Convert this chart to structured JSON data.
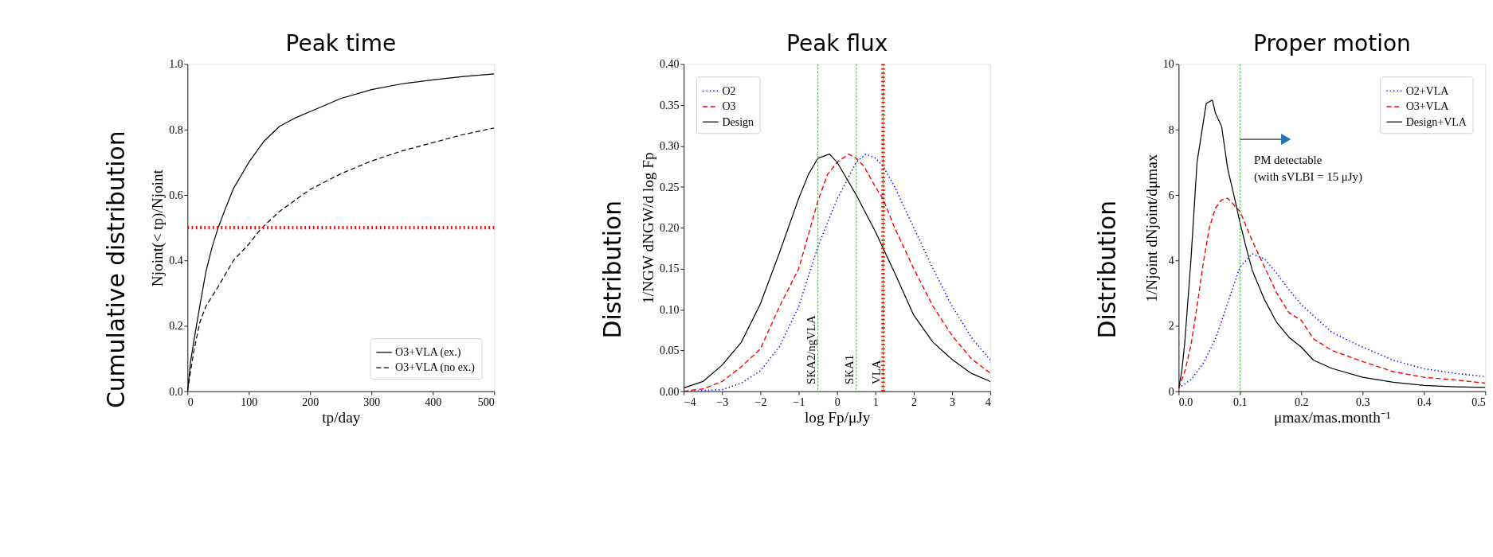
{
  "chart_data": [
    {
      "type": "line",
      "title": "Peak time",
      "xlabel": "tp/day",
      "ylabel": "Njoint(< tp)/Njoint",
      "annotations": [
        "Cumulative distribution"
      ],
      "xlim": [
        0,
        500
      ],
      "xticks": [
        0,
        100,
        200,
        300,
        400,
        500
      ],
      "ylim": [
        0,
        1
      ],
      "yticks": [
        {
          "value": 0,
          "label": "0.0"
        },
        0.2,
        0.4,
        0.6,
        0.8,
        {
          "value": 1,
          "label": "1.0"
        }
      ],
      "grid": false,
      "legend": "bottom right",
      "ref_lines": [
        {
          "axis": "y",
          "value": 0.5,
          "color": "#ff0000",
          "line_style": "dotted"
        }
      ],
      "series": [
        {
          "name": "O3+VLA (ex.)",
          "color": "#000000",
          "line_style": "solid",
          "x": [
            0,
            5,
            10,
            20,
            30,
            40,
            50,
            60,
            75,
            100,
            125,
            150,
            175,
            200,
            250,
            300,
            350,
            400,
            450,
            500
          ],
          "values": [
            0,
            0.09,
            0.15,
            0.26,
            0.365,
            0.44,
            0.5,
            0.55,
            0.62,
            0.7,
            0.765,
            0.81,
            0.835,
            0.855,
            0.895,
            0.922,
            0.94,
            0.952,
            0.962,
            0.97
          ]
        },
        {
          "name": "O3+VLA (no ex.)",
          "color": "#000000",
          "line_style": "dashed",
          "x": [
            0,
            5,
            10,
            20,
            30,
            40,
            50,
            75,
            100,
            120,
            150,
            200,
            250,
            300,
            350,
            400,
            450,
            500
          ],
          "values": [
            0,
            0.06,
            0.12,
            0.21,
            0.26,
            0.29,
            0.32,
            0.4,
            0.45,
            0.497,
            0.55,
            0.617,
            0.665,
            0.704,
            0.735,
            0.76,
            0.785,
            0.805
          ]
        }
      ]
    },
    {
      "type": "line",
      "title": "Peak flux",
      "xlabel": "log Fp/μJy",
      "ylabel": "1/NGW dNGW/d log Fp",
      "annotations": [
        "Distribution"
      ],
      "xlim": [
        -4,
        4
      ],
      "xticks": [
        -4,
        -3,
        -2,
        -1,
        0,
        1,
        2,
        3,
        4
      ],
      "ylim": [
        0,
        0.4
      ],
      "yticks": [
        {
          "value": 0,
          "label": "0.00"
        },
        0.05,
        {
          "value": 0.1,
          "label": "0.10"
        },
        0.15,
        {
          "value": 0.2,
          "label": "0.20"
        },
        0.25,
        {
          "value": 0.3,
          "label": "0.30"
        },
        0.35,
        {
          "value": 0.4,
          "label": "0.40"
        }
      ],
      "grid": false,
      "legend": "top left",
      "ref_lines": [
        {
          "axis": "x",
          "value": -0.5,
          "label": "SKA2/ngVLA",
          "color": "#2ca02c",
          "line_style": "dashed"
        },
        {
          "axis": "x",
          "value": 0.5,
          "label": "SKA1",
          "color": "#2ca02c",
          "line_style": "dashed"
        },
        {
          "axis": "x",
          "value": 1.2,
          "label": "VLA",
          "color": "#2ca02c",
          "line_style": "dashed"
        },
        {
          "axis": "x",
          "value": 1.2,
          "color": "#ff0000",
          "line_style": "dotted"
        }
      ],
      "series": [
        {
          "name": "O2",
          "color": "#0000ff",
          "line_style": "dotted",
          "x": [
            -4,
            -3,
            -2.5,
            -2,
            -1.5,
            -1,
            -0.5,
            0,
            0.5,
            0.75,
            1,
            1.2,
            1.5,
            2,
            2.5,
            3,
            3.5,
            4
          ],
          "values": [
            0,
            0.002,
            0.01,
            0.025,
            0.055,
            0.104,
            0.177,
            0.235,
            0.28,
            0.29,
            0.285,
            0.275,
            0.25,
            0.2,
            0.15,
            0.104,
            0.066,
            0.038
          ]
        },
        {
          "name": "O3",
          "color": "#ff0000",
          "line_style": "dashed",
          "x": [
            -4,
            -3.5,
            -3,
            -2.5,
            -2,
            -1.5,
            -1,
            -0.5,
            -0.25,
            0,
            0.3,
            0.5,
            0.7,
            1,
            1.2,
            1.5,
            2,
            2.5,
            3,
            3.5,
            4
          ],
          "values": [
            0,
            0.003,
            0.012,
            0.03,
            0.052,
            0.104,
            0.15,
            0.233,
            0.265,
            0.28,
            0.29,
            0.285,
            0.275,
            0.25,
            0.235,
            0.2,
            0.15,
            0.104,
            0.068,
            0.04,
            0.022
          ]
        },
        {
          "name": "Design",
          "color": "#000000",
          "line_style": "solid",
          "x": [
            -4,
            -3.5,
            -3,
            -2.5,
            -2,
            -1.5,
            -1,
            -0.75,
            -0.5,
            -0.2,
            0,
            0.25,
            0.5,
            1,
            1.2,
            1.5,
            2,
            2.5,
            3,
            3.5,
            4
          ],
          "values": [
            0.004,
            0.012,
            0.032,
            0.06,
            0.107,
            0.17,
            0.236,
            0.265,
            0.285,
            0.29,
            0.28,
            0.26,
            0.24,
            0.195,
            0.175,
            0.145,
            0.093,
            0.06,
            0.039,
            0.022,
            0.012
          ]
        }
      ]
    },
    {
      "type": "line",
      "title": "Proper motion",
      "xlabel": "μmax/mas.month⁻¹",
      "ylabel": "1/Njoint dNjoint/dμmax",
      "annotations": [
        "Distribution",
        "PM detectable",
        "(with sVLBI = 15 μJy)"
      ],
      "xlim": [
        0,
        0.5
      ],
      "xticks": [
        {
          "value": 0,
          "label": "0.0"
        },
        0.1,
        0.2,
        0.3,
        0.4,
        0.5
      ],
      "ylim": [
        0,
        10
      ],
      "yticks": [
        0,
        2,
        4,
        6,
        8,
        10
      ],
      "grid": false,
      "legend": "top right",
      "ref_lines": [
        {
          "axis": "x",
          "value": 0.1,
          "color": "#2ca02c",
          "line_style": "dashed"
        }
      ],
      "series": [
        {
          "name": "O2+VLA",
          "color": "#0000ff",
          "line_style": "dotted",
          "x": [
            0,
            0.02,
            0.04,
            0.06,
            0.08,
            0.1,
            0.12,
            0.14,
            0.16,
            0.18,
            0.2,
            0.25,
            0.3,
            0.35,
            0.4,
            0.45,
            0.5
          ],
          "values": [
            0.1,
            0.35,
            0.85,
            1.6,
            2.7,
            3.8,
            4.2,
            4.05,
            3.6,
            3.1,
            2.65,
            1.8,
            1.35,
            0.95,
            0.69,
            0.55,
            0.45
          ]
        },
        {
          "name": "O3+VLA",
          "color": "#ff0000",
          "line_style": "dashed",
          "x": [
            0,
            0.01,
            0.02,
            0.03,
            0.04,
            0.05,
            0.06,
            0.07,
            0.08,
            0.09,
            0.1,
            0.12,
            0.14,
            0.16,
            0.18,
            0.2,
            0.22,
            0.25,
            0.3,
            0.35,
            0.4,
            0.45,
            0.5
          ],
          "values": [
            0.1,
            0.6,
            1.4,
            2.6,
            3.9,
            5.0,
            5.6,
            5.85,
            5.9,
            5.7,
            5.5,
            4.6,
            3.8,
            3.0,
            2.4,
            2.17,
            1.6,
            1.25,
            0.91,
            0.6,
            0.43,
            0.35,
            0.25
          ]
        },
        {
          "name": "Design+VLA",
          "color": "#000000",
          "line_style": "solid",
          "x": [
            0,
            0.005,
            0.01,
            0.02,
            0.03,
            0.04,
            0.045,
            0.055,
            0.06,
            0.07,
            0.08,
            0.09,
            0.1,
            0.11,
            0.12,
            0.14,
            0.16,
            0.18,
            0.2,
            0.22,
            0.25,
            0.3,
            0.35,
            0.4,
            0.45,
            0.5
          ],
          "values": [
            0.1,
            0.6,
            1.5,
            4.0,
            7.0,
            8.2,
            8.8,
            8.9,
            8.5,
            8.1,
            6.8,
            6.0,
            5.16,
            4.4,
            3.7,
            2.8,
            2.1,
            1.65,
            1.35,
            0.95,
            0.7,
            0.43,
            0.28,
            0.18,
            0.14,
            0.12
          ]
        }
      ]
    }
  ]
}
